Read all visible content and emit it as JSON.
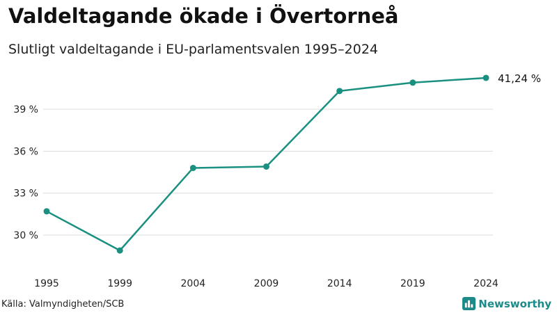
{
  "header": {
    "title": "Valdeltagande ökade i Övertorneå",
    "subtitle": "Slutligt valdeltagande i EU-parlamentsvalen 1995–2024"
  },
  "footer": {
    "source": "Källa: Valmyndigheten/SCB",
    "brand": "Newsworthy",
    "brand_icon": "bar-chart-logo-icon"
  },
  "colors": {
    "line": "#1a9080",
    "grid": "#dddddd",
    "brand": "#1d8a8a"
  },
  "chart_data": {
    "type": "line",
    "title": "Valdeltagande ökade i Övertorneå",
    "subtitle": "Slutligt valdeltagande i EU-parlamentsvalen 1995–2024",
    "xlabel": "",
    "ylabel": "",
    "x": [
      "1995",
      "1999",
      "2004",
      "2009",
      "2014",
      "2019",
      "2024"
    ],
    "series": [
      {
        "name": "Valdeltagande",
        "values": [
          31.7,
          28.9,
          34.8,
          34.9,
          40.3,
          40.9,
          41.24
        ]
      }
    ],
    "yticks": [
      30,
      33,
      36,
      39
    ],
    "ytick_labels": [
      "30 %",
      "33 %",
      "36 %",
      "39 %"
    ],
    "ylim": [
      27.9,
      42.0
    ],
    "grid": true,
    "end_label": "41,24 %"
  }
}
